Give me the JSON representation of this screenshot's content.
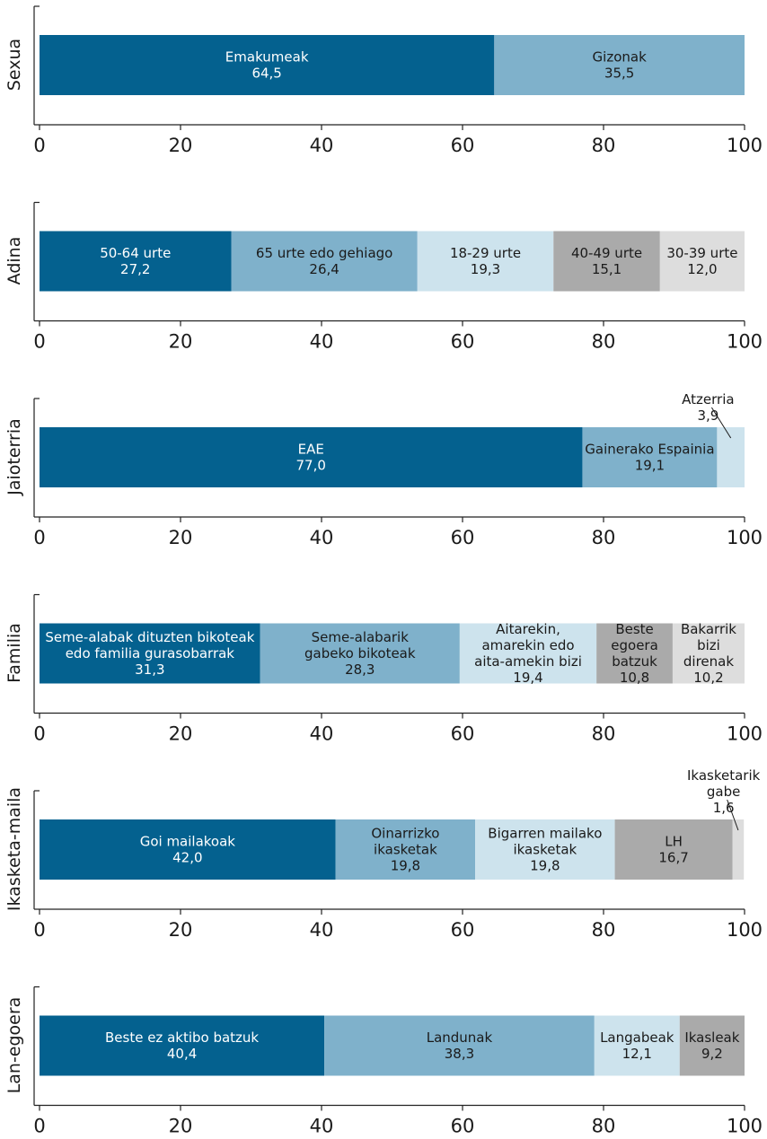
{
  "chart_data": {
    "type": "bar",
    "orientation": "horizontal",
    "stacked": true,
    "xlim": [
      0,
      100
    ],
    "xticks": [
      "0",
      "20",
      "40",
      "60",
      "80",
      "100"
    ],
    "palette": [
      "#04618f",
      "#7fb1cb",
      "#cde3ed",
      "#aaaaaa",
      "#dddddd"
    ],
    "panels": [
      {
        "label": "Sexua",
        "segments": [
          {
            "name": [
              "Emakumeak"
            ],
            "value": 64.5,
            "text": "64,5"
          },
          {
            "name": [
              "Gizonak"
            ],
            "value": 35.5,
            "text": "35,5"
          }
        ]
      },
      {
        "label": "Adina",
        "segments": [
          {
            "name": [
              "50-64 urte"
            ],
            "value": 27.2,
            "text": "27,2"
          },
          {
            "name": [
              "65 urte edo gehiago"
            ],
            "value": 26.4,
            "text": "26,4"
          },
          {
            "name": [
              "18-29 urte"
            ],
            "value": 19.3,
            "text": "19,3"
          },
          {
            "name": [
              "40-49 urte"
            ],
            "value": 15.1,
            "text": "15,1"
          },
          {
            "name": [
              "30-39 urte"
            ],
            "value": 12.0,
            "text": "12,0"
          }
        ]
      },
      {
        "label": "Jaioterria",
        "segments": [
          {
            "name": [
              "EAE"
            ],
            "value": 77.0,
            "text": "77,0"
          },
          {
            "name": [
              "Gainerako Espainia"
            ],
            "value": 19.1,
            "text": "19,1"
          },
          {
            "name": [
              "Atzerria"
            ],
            "value": 3.9,
            "text": "3,9",
            "outside": true
          }
        ]
      },
      {
        "label": "Familia",
        "segments": [
          {
            "name": [
              "Seme-alabak dituzten bikoteak",
              "edo familia gurasobarrak"
            ],
            "value": 31.3,
            "text": "31,3"
          },
          {
            "name": [
              "Seme-alabarik",
              "gabeko bikoteak"
            ],
            "value": 28.3,
            "text": "28,3"
          },
          {
            "name": [
              "Aitarekin,",
              "amarekin edo",
              "aita-amekin bizi"
            ],
            "value": 19.4,
            "text": "19,4"
          },
          {
            "name": [
              "Beste",
              "egoera",
              "batzuk"
            ],
            "value": 10.8,
            "text": "10,8"
          },
          {
            "name": [
              "Bakarrik",
              "bizi",
              "direnak"
            ],
            "value": 10.2,
            "text": "10,2"
          }
        ]
      },
      {
        "label": "Ikasketa-maila",
        "segments": [
          {
            "name": [
              "Goi mailakoak"
            ],
            "value": 42.0,
            "text": "42,0"
          },
          {
            "name": [
              "Oinarrizko",
              "ikasketak"
            ],
            "value": 19.8,
            "text": "19,8"
          },
          {
            "name": [
              "Bigarren mailako",
              "ikasketak"
            ],
            "value": 19.8,
            "text": "19,8"
          },
          {
            "name": [
              "LH"
            ],
            "value": 16.7,
            "text": "16,7"
          },
          {
            "name": [
              "Ikasketarik",
              "gabe"
            ],
            "value": 1.6,
            "text": "1,6",
            "outside": true
          }
        ]
      },
      {
        "label": "Lan-egoera",
        "segments": [
          {
            "name": [
              "Beste ez aktibo batzuk"
            ],
            "value": 40.4,
            "text": "40,4"
          },
          {
            "name": [
              "Landunak"
            ],
            "value": 38.3,
            "text": "38,3"
          },
          {
            "name": [
              "Langabeak"
            ],
            "value": 12.1,
            "text": "12,1"
          },
          {
            "name": [
              "Ikasleak"
            ],
            "value": 9.2,
            "text": "9,2"
          }
        ]
      }
    ]
  }
}
